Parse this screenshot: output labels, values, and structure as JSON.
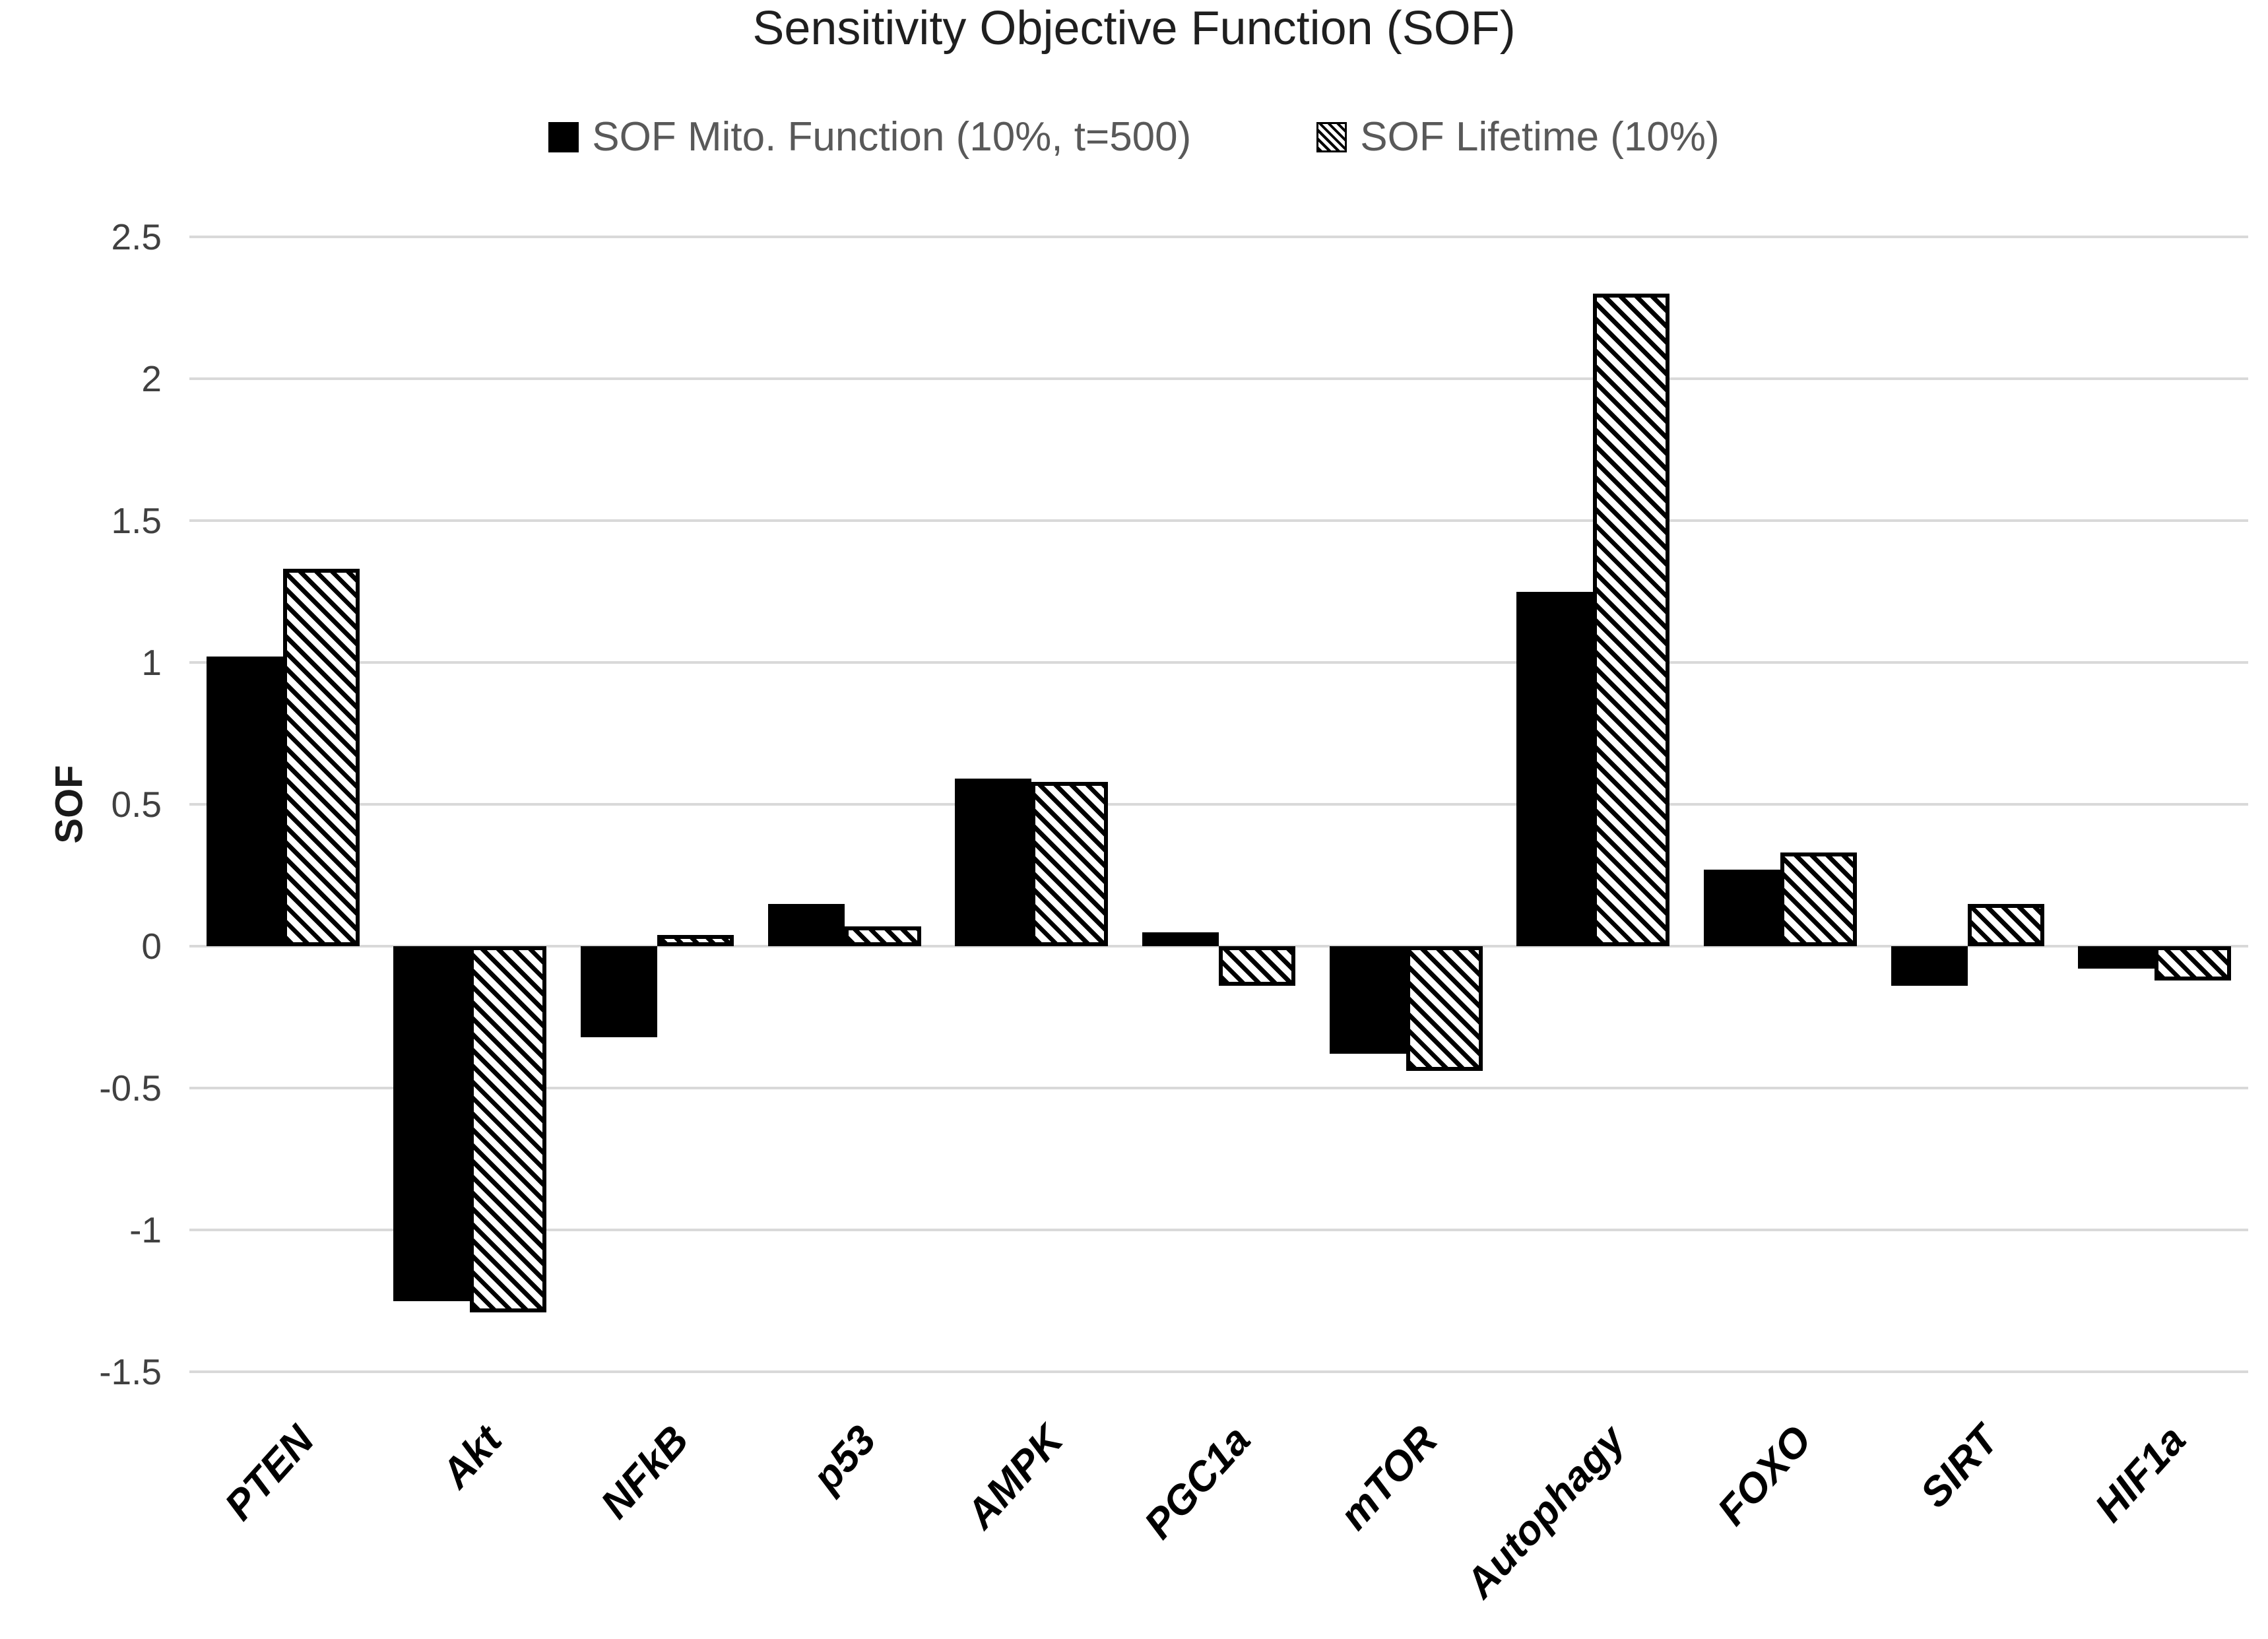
{
  "title": "Sensitivity Objective Function (SOF)",
  "legend": {
    "items": [
      {
        "label": "SOF Mito. Function (10%, t=500)",
        "swatch": "solid-black-square"
      },
      {
        "label": "SOF Lifetime (10%)",
        "swatch": "diagonal-hatch-square"
      }
    ]
  },
  "y_axis": {
    "label": "SOF",
    "ticks": [
      "2.5",
      "2",
      "1.5",
      "1",
      "0.5",
      "0",
      "-0.5",
      "-1",
      "-1.5"
    ]
  },
  "colors": {
    "bar_solid": "#000000",
    "hatch_line": "#000000",
    "gridline": "#d9d9d9",
    "tick_text": "#404040",
    "legend_text": "#595959",
    "title_text": "#1f1f1f",
    "xlabel_text": "#000000"
  },
  "chart_data": {
    "type": "bar",
    "title": "Sensitivity Objective Function (SOF)",
    "categories": [
      "PTEN",
      "Akt",
      "NFkB",
      "p53",
      "AMPK",
      "PGC1a",
      "mTOR",
      "Autophagy",
      "FOXO",
      "SIRT",
      "HIF1a"
    ],
    "series": [
      {
        "name": "SOF Mito. Function (10%, t=500)",
        "style": "solid",
        "values": [
          1.02,
          -1.25,
          -0.32,
          0.15,
          0.59,
          0.05,
          -0.38,
          1.25,
          0.27,
          -0.14,
          -0.08
        ]
      },
      {
        "name": "SOF Lifetime (10%)",
        "style": "hatched",
        "values": [
          1.33,
          -1.29,
          0.04,
          0.07,
          0.58,
          -0.14,
          -0.44,
          2.3,
          0.33,
          0.15,
          -0.12
        ]
      }
    ],
    "xlabel": "",
    "ylabel": "SOF",
    "ylim": [
      -1.5,
      2.5
    ],
    "ytick_step": 0.5,
    "grid": true,
    "legend_position": "top-center",
    "bar_orientation": "vertical"
  }
}
